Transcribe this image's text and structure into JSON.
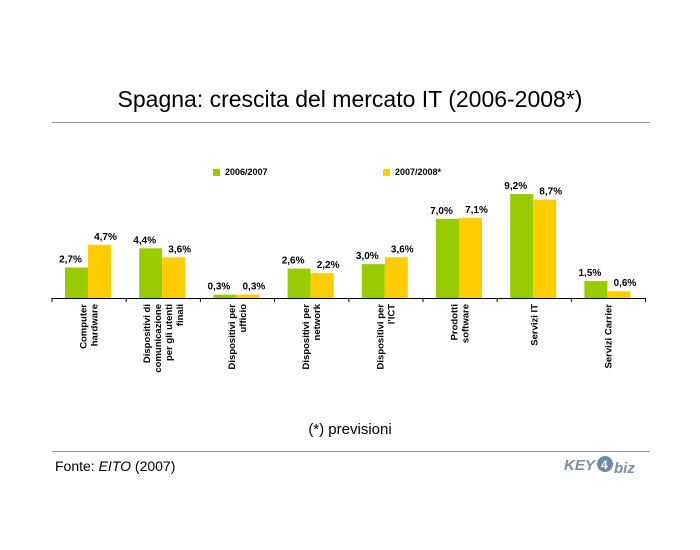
{
  "title": "Spagna: crescita del mercato IT (2006-2008*)",
  "footnote": "(*) previsioni",
  "source": {
    "prefix": "Fonte: ",
    "name": "EITO",
    "suffix": " (2007)"
  },
  "logo": {
    "text_a": "KEY",
    "digit": "4",
    "text_b": "biz"
  },
  "colors": {
    "series1": "#99cc00",
    "series2": "#ffcc00",
    "axis": "#000000"
  },
  "chart_data": {
    "type": "bar",
    "title": "Spagna: crescita del mercato IT (2006-2008*)",
    "xlabel": "",
    "ylabel": "",
    "ylim": [
      0,
      10
    ],
    "legend": "top",
    "grid": false,
    "categories": [
      [
        "Computer",
        "hardware"
      ],
      [
        "Dispositivi di",
        "comunicazione",
        "per gli utenti",
        "finali"
      ],
      [
        "Dispositivi per",
        "ufficio"
      ],
      [
        "Dispositivi per",
        "network"
      ],
      [
        "Dispositivi per",
        "l'ICT"
      ],
      [
        "Prodotti",
        "software"
      ],
      [
        "Servizi IT"
      ],
      [
        "Servizi Carrier"
      ]
    ],
    "series": [
      {
        "name": "2006/2007",
        "color": "#99cc00",
        "values": [
          2.7,
          4.4,
          0.3,
          2.6,
          3.0,
          7.0,
          9.2,
          1.5
        ],
        "labels": [
          "2,7%",
          "4,4%",
          "0,3%",
          "2,6%",
          "3,0%",
          "7,0%",
          "9,2%",
          "1,5%"
        ]
      },
      {
        "name": "2007/2008*",
        "color": "#ffcc00",
        "values": [
          4.7,
          3.6,
          0.3,
          2.2,
          3.6,
          7.1,
          8.7,
          0.6
        ],
        "labels": [
          "4,7%",
          "3,6%",
          "0,3%",
          "2,2%",
          "3,6%",
          "7,1%",
          "8,7%",
          "0,6%"
        ]
      }
    ]
  }
}
